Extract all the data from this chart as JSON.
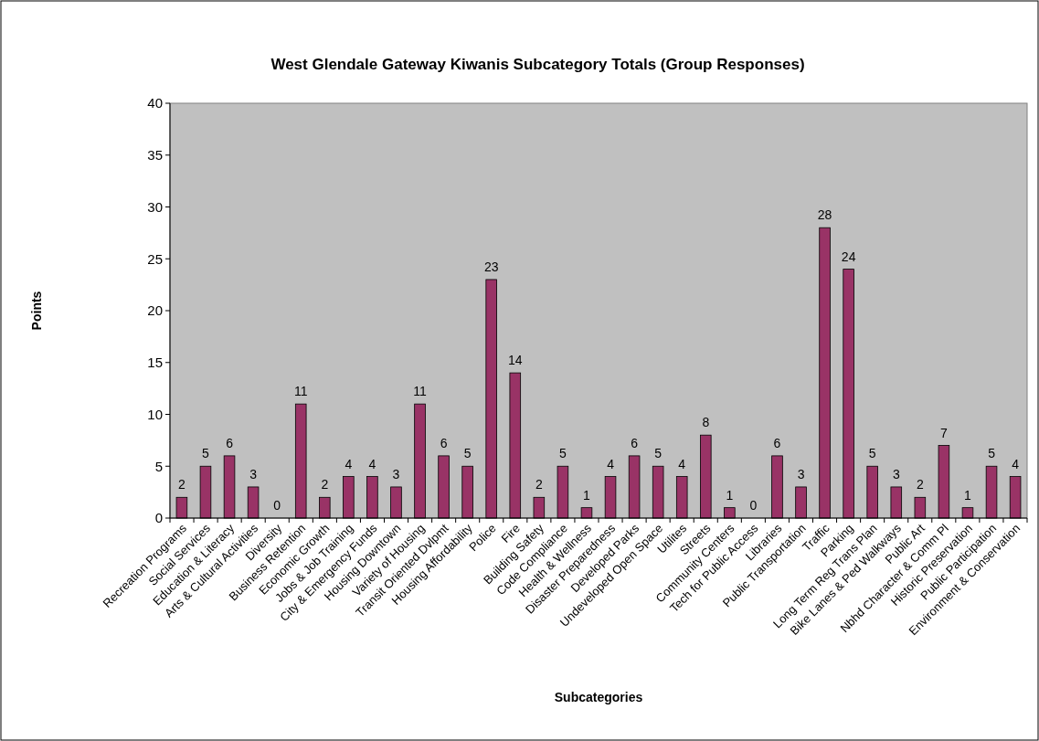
{
  "chart_data": {
    "type": "bar",
    "title": "West Glendale Gateway Kiwanis Subcategory Totals (Group Responses)",
    "xlabel": "Subcategories",
    "ylabel": "Points",
    "categories": [
      "Recreation Programs",
      "Social Services",
      "Education & Literacy",
      "Arts & Cultural Activities",
      "Diversity",
      "Business Retention",
      "Economic Growth",
      "Jobs & Job Training",
      "City & Emergency Funds",
      "Housing Downtown",
      "Variety of Housing",
      "Transit Oriented Dvlpmt",
      "Housing Affordability",
      "Police",
      "Fire",
      "Building Safety",
      "Code Compliance",
      "Health & Wellness",
      "Disaster Preparedness",
      "Developed Parks",
      "Undeveloped Open Space",
      "Utilites",
      "Streets",
      "Community Centers",
      "Tech for Public Access",
      "Libraries",
      "Public Transportation",
      "Traffic",
      "Parking",
      "Long Term Reg Trans Plan",
      "Bike Lanes & Ped Walkways",
      "Public Art",
      "Nbhd Character & Comm Pl",
      "Historic Preservation",
      "Public Participation",
      "Environment & Conservation"
    ],
    "values": [
      2,
      5,
      6,
      3,
      0,
      11,
      2,
      4,
      4,
      3,
      11,
      6,
      5,
      23,
      14,
      2,
      5,
      1,
      4,
      6,
      5,
      4,
      8,
      1,
      0,
      6,
      3,
      28,
      24,
      5,
      3,
      2,
      7,
      1,
      5,
      4
    ],
    "color": "#993366",
    "ylim": [
      0,
      40
    ],
    "yticks": [
      0,
      5,
      10,
      15,
      20,
      25,
      30,
      35,
      40
    ],
    "data_labels": true,
    "grid": false
  }
}
